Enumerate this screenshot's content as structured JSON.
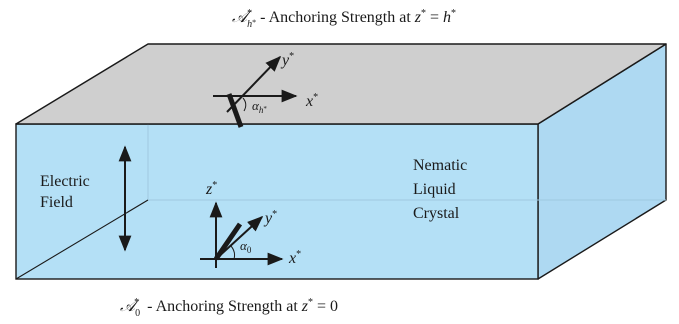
{
  "top_caption": {
    "symbol": "𝒜",
    "sub": "h",
    "sub_star": "*",
    "sup": "*",
    "text": " - Anchoring Strength at ",
    "var": "z",
    "var_sup": "*",
    "eq": " = ",
    "rhs": "h",
    "rhs_sup": "*"
  },
  "bottom_caption": {
    "symbol": "𝒜",
    "sub": "0",
    "sup": "*",
    "text": " - Anchoring Strength at ",
    "var": "z",
    "var_sup": "*",
    "eq": " = ",
    "rhs": "0"
  },
  "electric_field": {
    "line1": "Electric",
    "line2": "Field"
  },
  "crystal_label": {
    "line1": "Nematic",
    "line2": "Liquid",
    "line3": "Crystal"
  },
  "top_axes": {
    "x": "x",
    "x_sup": "*",
    "y": "y",
    "y_sup": "*",
    "alpha": "α",
    "alpha_sub": "h",
    "alpha_sub_star": "*"
  },
  "bottom_axes": {
    "x": "x",
    "x_sup": "*",
    "y": "y",
    "y_sup": "*",
    "z": "z",
    "z_sup": "*",
    "alpha": "α",
    "alpha_sub": "0"
  },
  "colors": {
    "liquid_front": "#b4e0f6",
    "liquid_side": "#aed9f2",
    "liquid_floor": "#bfe5f8",
    "top_plate": "#cfcfcf",
    "stroke": "#1a1a1a"
  }
}
